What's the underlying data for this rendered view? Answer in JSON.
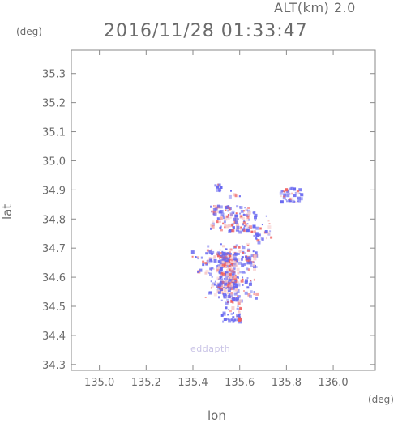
{
  "header": {
    "altitude": "ALT(km) 2.0",
    "datetime": "2016/11/28 01:33:47"
  },
  "watermark": "eddapth",
  "chart_data": {
    "type": "heatmap",
    "title": "2016/11/28 01:33:47",
    "subtitle": "ALT(km) 2.0",
    "xlabel": "lon",
    "ylabel": "lat",
    "xunit": "(deg)",
    "yunit": "(deg)",
    "xlim": [
      134.88,
      136.18
    ],
    "ylim": [
      34.28,
      35.38
    ],
    "xticks": [
      "135.0",
      "135.2",
      "135.4",
      "135.6",
      "135.8",
      "136.0"
    ],
    "yticks": [
      "34.3",
      "34.4",
      "34.5",
      "34.6",
      "34.7",
      "34.8",
      "34.9",
      "35.0",
      "35.1",
      "35.2",
      "35.3"
    ],
    "grid": false,
    "colors": {
      "positive": "#f06060",
      "negative": "#6868f0",
      "neutral": "#f6c8c8",
      "frame": "#8a8a8a"
    },
    "clusters": [
      {
        "lon": [
          135.5,
          135.58
        ],
        "lat": [
          34.56,
          34.69
        ],
        "n": 260,
        "mix": 0.55
      },
      {
        "lon": [
          135.45,
          135.67
        ],
        "lat": [
          34.53,
          34.72
        ],
        "n": 160,
        "mix": 0.45
      },
      {
        "lon": [
          135.52,
          135.6
        ],
        "lat": [
          34.45,
          34.55
        ],
        "n": 70,
        "mix": 0.4
      },
      {
        "lon": [
          135.47,
          135.64
        ],
        "lat": [
          34.76,
          34.85
        ],
        "n": 130,
        "mix": 0.45
      },
      {
        "lon": [
          135.64,
          135.73
        ],
        "lat": [
          34.72,
          34.83
        ],
        "n": 35,
        "mix": 0.3
      },
      {
        "lon": [
          135.77,
          135.86
        ],
        "lat": [
          34.86,
          34.91
        ],
        "n": 45,
        "mix": 0.45
      },
      {
        "lon": [
          135.39,
          135.48
        ],
        "lat": [
          34.61,
          34.7
        ],
        "n": 25,
        "mix": 0.3
      },
      {
        "lon": [
          135.49,
          135.52
        ],
        "lat": [
          34.9,
          34.93
        ],
        "n": 10,
        "mix": 0.3
      },
      {
        "lon": [
          135.55,
          135.6
        ],
        "lat": [
          34.88,
          34.9
        ],
        "n": 6,
        "mix": 0.2
      },
      {
        "lon": [
          135.62,
          135.66
        ],
        "lat": [
          34.64,
          34.68
        ],
        "n": 20,
        "mix": 0.5
      }
    ]
  }
}
